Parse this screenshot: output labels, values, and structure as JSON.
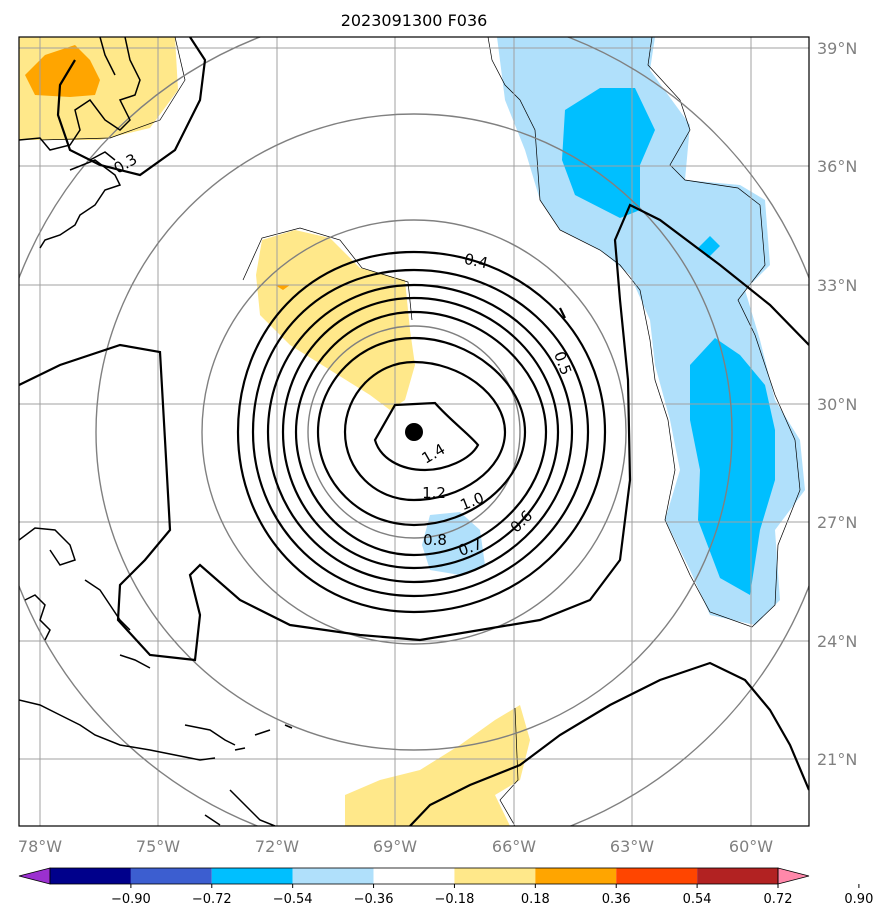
{
  "map": {
    "title": "2023091300 F036",
    "lon_labels": [
      "78°W",
      "75°W",
      "72°W",
      "69°W",
      "66°W",
      "63°W",
      "60°W"
    ],
    "lat_labels": [
      "39°N",
      "36°N",
      "33°N",
      "30°N",
      "27°N",
      "24°N",
      "21°N"
    ],
    "contour_labels": [
      "0.3",
      "0.4",
      "0.5",
      "0.6",
      "0.7",
      "0.8",
      "1.0",
      "1.2",
      "1.4"
    ],
    "storm_center": {
      "lon": -68.5,
      "lat": 29.2
    }
  },
  "colorbar": {
    "tick_labels": [
      "−0.90",
      "−0.72",
      "−0.54",
      "−0.36",
      "−0.18",
      "0.18",
      "0.36",
      "0.54",
      "0.72",
      "0.90"
    ],
    "colors": [
      "#9b30d0",
      "#00008b",
      "#3c5ed0",
      "#00bfff",
      "#b0e0fb",
      "#ffffff",
      "#ffe88a",
      "#ffa500",
      "#ff4500",
      "#b22222",
      "#ff88aa"
    ]
  }
}
